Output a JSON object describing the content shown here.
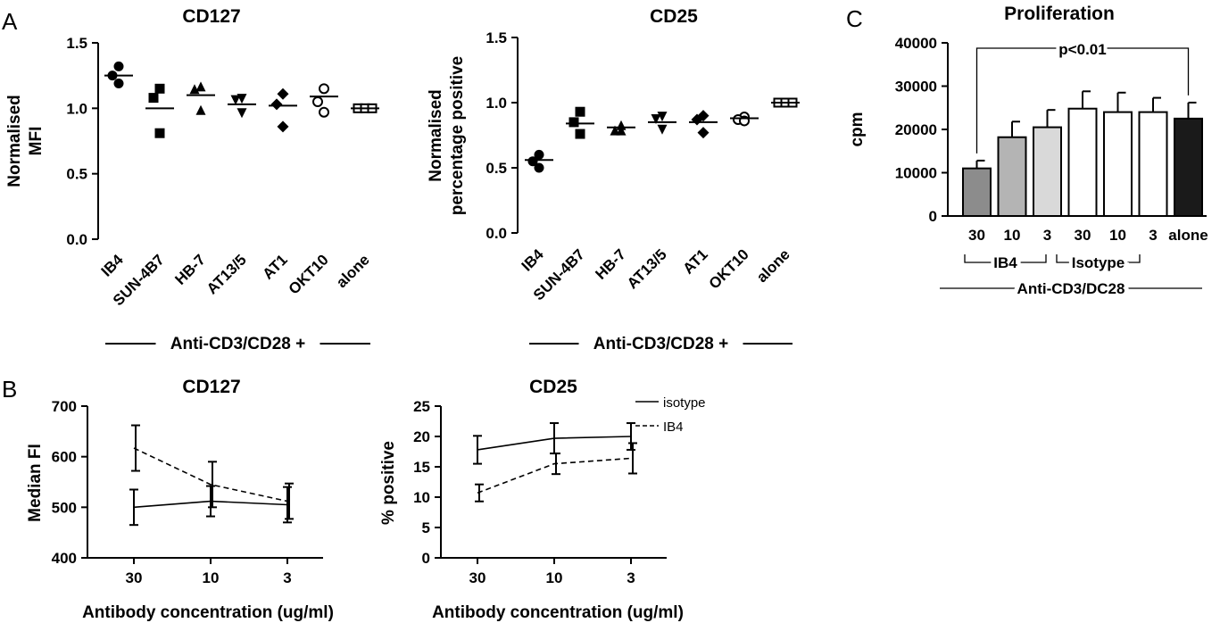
{
  "panels": {
    "A": "A",
    "B": "B",
    "C": "C"
  },
  "chart_data": [
    {
      "id": "A1",
      "type": "scatter",
      "title": "CD127",
      "ylabel_lines": [
        "Normalised",
        "MFI"
      ],
      "xlabel": "",
      "ylim": [
        0,
        1.5
      ],
      "yticks": [
        "0.0",
        "0.5",
        "1.0",
        "1.5"
      ],
      "categories": [
        "IB4",
        "SUN-4B7",
        "HB-7",
        "AT13/5",
        "AT1",
        "OKT10",
        "alone"
      ],
      "markers": [
        "circle",
        "square",
        "triangle-up",
        "triangle-down",
        "diamond",
        "circle-open",
        "square-open"
      ],
      "points": [
        [
          1.32,
          1.25,
          1.19
        ],
        [
          1.15,
          1.08,
          0.81
        ],
        [
          1.16,
          1.14,
          0.98
        ],
        [
          1.08,
          1.07,
          0.97
        ],
        [
          1.11,
          1.03,
          0.86
        ],
        [
          1.15,
          1.05,
          0.97
        ],
        [
          1.0,
          1.0,
          1.0
        ]
      ],
      "means": [
        1.25,
        1.0,
        1.1,
        1.03,
        1.02,
        1.09,
        1.0
      ],
      "bracket_label": "Anti-CD3/CD28 +"
    },
    {
      "id": "A2",
      "type": "scatter",
      "title": "CD25",
      "ylabel_lines": [
        "Normalised",
        "percentage positive"
      ],
      "xlabel": "",
      "ylim": [
        0,
        1.5
      ],
      "yticks": [
        "0.0",
        "0.5",
        "1.0",
        "1.5"
      ],
      "categories": [
        "IB4",
        "SUN-4B7",
        "HB-7",
        "AT13/5",
        "AT1",
        "OKT10",
        "alone"
      ],
      "markers": [
        "circle",
        "square",
        "triangle-up",
        "triangle-down",
        "diamond",
        "circle-open",
        "square-open"
      ],
      "points": [
        [
          0.6,
          0.55,
          0.5
        ],
        [
          0.93,
          0.85,
          0.76
        ],
        [
          0.82,
          0.78,
          0.78
        ],
        [
          0.9,
          0.88,
          0.8
        ],
        [
          0.9,
          0.87,
          0.77
        ],
        [
          0.89,
          0.87,
          0.86
        ],
        [
          1.0,
          1.0,
          1.0
        ]
      ],
      "means": [
        0.56,
        0.84,
        0.81,
        0.85,
        0.85,
        0.88,
        1.0
      ],
      "bracket_label": "Anti-CD3/CD28 +"
    },
    {
      "id": "B1",
      "type": "line",
      "title": "CD127",
      "ylabel": "Median FI",
      "xlabel": "Antibody concentration (ug/ml)",
      "x": [
        "30",
        "10",
        "3"
      ],
      "ylim": [
        400,
        700
      ],
      "yticks": [
        "400",
        "500",
        "600",
        "700"
      ],
      "series": [
        {
          "name": "isotype",
          "style": "solid",
          "values": [
            500,
            512,
            505
          ],
          "err": [
            35,
            30,
            35
          ]
        },
        {
          "name": "IB4",
          "style": "dashed",
          "values": [
            617,
            545,
            512
          ],
          "err": [
            45,
            45,
            35
          ]
        }
      ]
    },
    {
      "id": "B2",
      "type": "line",
      "title": "CD25",
      "ylabel": "% positive",
      "xlabel": "Antibody concentration (ug/ml)",
      "x": [
        "30",
        "10",
        "3"
      ],
      "ylim": [
        0,
        25
      ],
      "yticks": [
        "0",
        "5",
        "10",
        "15",
        "20",
        "25"
      ],
      "series": [
        {
          "name": "isotype",
          "style": "solid",
          "values": [
            17.8,
            19.7,
            20.0
          ],
          "err": [
            2.3,
            2.5,
            2.2
          ]
        },
        {
          "name": "IB4",
          "style": "dashed",
          "values": [
            10.7,
            15.5,
            16.4
          ],
          "err": [
            1.4,
            1.7,
            2.5
          ]
        }
      ],
      "legend": [
        {
          "name": "isotype",
          "style": "solid"
        },
        {
          "name": "IB4",
          "style": "dashed"
        }
      ],
      "legend_position": "top-right"
    },
    {
      "id": "C",
      "type": "bar",
      "title": "Proliferation",
      "ylabel": "cpm",
      "xlabel": "",
      "categories": [
        "30",
        "10",
        "3",
        "30",
        "10",
        "3",
        "alone"
      ],
      "values": [
        11000,
        18200,
        20500,
        24800,
        24000,
        24000,
        22500
      ],
      "err": [
        1800,
        3600,
        4000,
        4000,
        4500,
        3300,
        3700
      ],
      "fills": [
        "#8c8c8c",
        "#b4b4b4",
        "#d9d9d9",
        "#ffffff",
        "#ffffff",
        "#ffffff",
        "#1a1a1a"
      ],
      "ylim": [
        0,
        40000
      ],
      "yticks": [
        "0",
        "10000",
        "20000",
        "30000",
        "40000"
      ],
      "annotation": "p<0.01",
      "group_labels": [
        "IB4",
        "Isotype"
      ],
      "bracket_label": "Anti-CD3/DC28"
    }
  ]
}
